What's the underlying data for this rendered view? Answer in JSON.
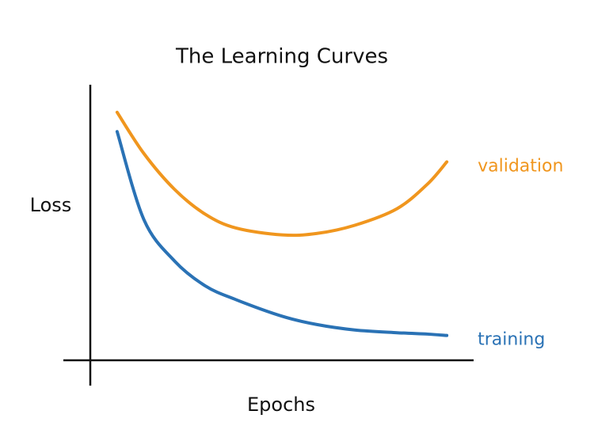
{
  "chart_data": {
    "type": "line",
    "title": "The Learning Curves",
    "x_label": "Epochs",
    "y_label": "Loss",
    "x": [
      0.7,
      1.4,
      2.2,
      3,
      3.8,
      5,
      5.9,
      6.9,
      8,
      8.8,
      9.3
    ],
    "series": [
      {
        "name": "validation",
        "color": "#f0961e",
        "values": [
          9.0,
          7.5,
          6.2,
          5.3,
          4.8,
          4.55,
          4.6,
          4.9,
          5.5,
          6.4,
          7.2
        ]
      },
      {
        "name": "training",
        "color": "#2a72b5",
        "values": [
          8.3,
          5.1,
          3.6,
          2.7,
          2.2,
          1.6,
          1.3,
          1.1,
          1.0,
          0.95,
          0.9
        ]
      }
    ],
    "xlim": [
      0,
      10
    ],
    "ylim": [
      0,
      10
    ]
  }
}
